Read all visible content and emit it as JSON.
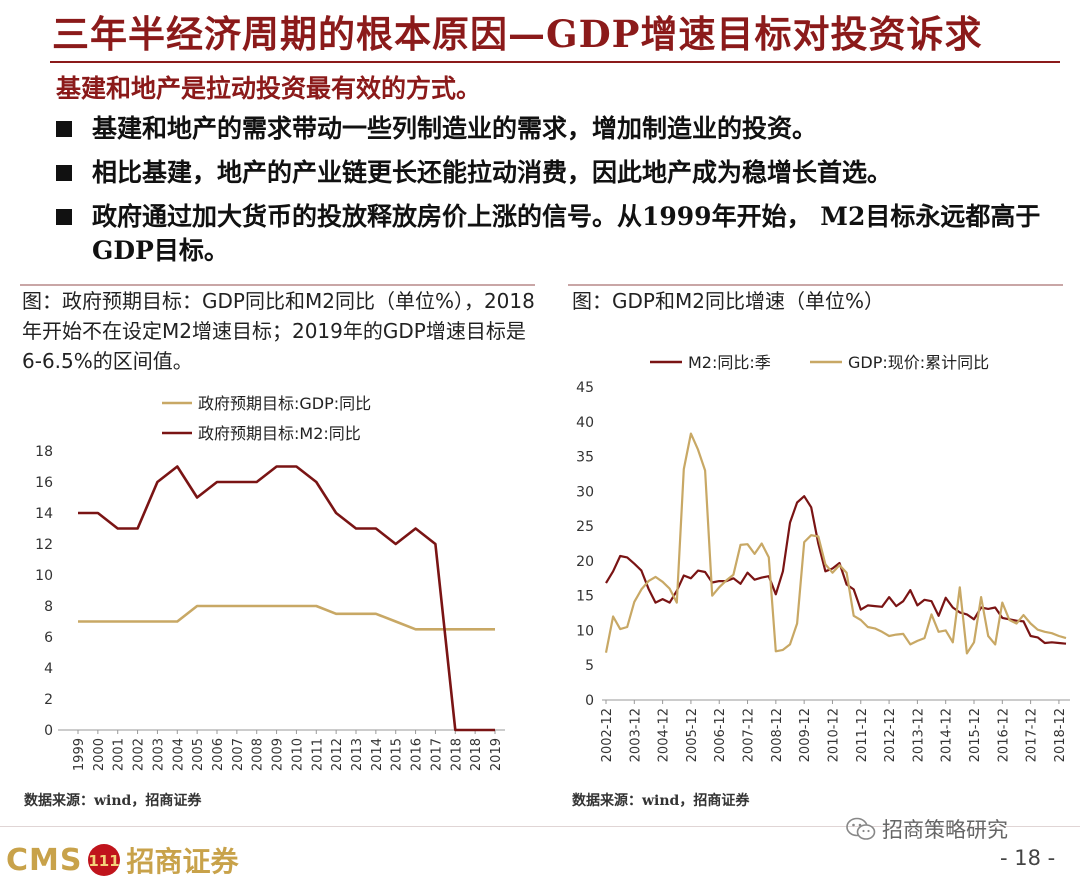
{
  "title": "三年半经济周期的根本原因—GDP增速目标对投资诉求",
  "subtitle": "基建和地产是拉动投资最有效的方式。",
  "bullets": [
    "基建和地产的需求带动一些列制造业的需求，增加制造业的投资。",
    "相比基建，地产的产业链更长还能拉动消费，因此地产成为稳增长首选。",
    "政府通过加大货币的投放释放房价上涨的信号。从1999年开始， M2目标永远都高于GDP目标。"
  ],
  "left_panel": {
    "caption": "图：政府预期目标：GDP同比和M2同比（单位%），2018年开始不在设定M2增速目标；2019年的GDP增速目标是6-6.5%的区间值。",
    "source": "数据来源：wind，招商证券"
  },
  "right_panel": {
    "caption": "图：GDP和M2同比增速（单位%）",
    "source": "数据来源：wind，招商证券"
  },
  "chart_data": [
    {
      "type": "line",
      "categories": [
        "1999",
        "2000",
        "2001",
        "2002",
        "2003",
        "2004",
        "2005",
        "2006",
        "2007",
        "2008",
        "2009",
        "2010",
        "2011",
        "2012",
        "2013",
        "2014",
        "2015",
        "2016",
        "2017",
        "2018",
        "2018",
        "2019"
      ],
      "series": [
        {
          "name": "政府预期目标:GDP:同比",
          "color": "#c8a865",
          "values": [
            7,
            7,
            7,
            7,
            7,
            7,
            8,
            8,
            8,
            8,
            8,
            8,
            8,
            7.5,
            7.5,
            7.5,
            7,
            6.5,
            6.5,
            6.5,
            6.5,
            6.5
          ]
        },
        {
          "name": "政府预期目标:M2:同比",
          "color": "#7a1414",
          "values": [
            14,
            14,
            13,
            13,
            16,
            17,
            15,
            16,
            16,
            16,
            17,
            17,
            16,
            14,
            13,
            13,
            12,
            13,
            12,
            0,
            0,
            0
          ]
        }
      ],
      "yticks": [
        0,
        2,
        4,
        6,
        8,
        10,
        12,
        14,
        16,
        18
      ],
      "ylim": [
        0,
        18
      ],
      "legend": "top-left",
      "grid": false
    },
    {
      "type": "line",
      "xticks": [
        "2002-12",
        "2003-12",
        "2004-12",
        "2005-12",
        "2006-12",
        "2007-12",
        "2008-12",
        "2009-12",
        "2010-12",
        "2011-12",
        "2012-12",
        "2013-12",
        "2014-12",
        "2015-12",
        "2016-12",
        "2017-12",
        "2018-12"
      ],
      "x_start": 2002.75,
      "x_step": 0.25,
      "series": [
        {
          "name": "M2:同比:季",
          "color": "#7a1414",
          "values": [
            16.8,
            18.5,
            20.7,
            20.5,
            19.6,
            18.6,
            16.0,
            14.0,
            14.5,
            14.0,
            15.7,
            17.9,
            17.5,
            18.6,
            18.4,
            16.9,
            17.1,
            17.1,
            17.5,
            16.7,
            18.3,
            17.3,
            17.6,
            17.8,
            15.2,
            18.5,
            25.5,
            28.4,
            29.3,
            27.7,
            22.5,
            18.5,
            18.9,
            19.7,
            16.6,
            15.9,
            13.0,
            13.6,
            13.5,
            13.4,
            14.8,
            13.5,
            14.2,
            15.8,
            13.6,
            14.4,
            14.2,
            12.1,
            14.7,
            13.3,
            12.6,
            12.3,
            11.6,
            13.3,
            13.1,
            13.3,
            11.8,
            11.6,
            11.4,
            11.3,
            9.2,
            9.0,
            8.2,
            8.3,
            8.2,
            8.1
          ]
        },
        {
          "name": "GDP:现价:累计同比",
          "color": "#c8a865",
          "values": [
            6.8,
            12.0,
            10.2,
            10.5,
            14.1,
            15.9,
            17.1,
            17.7,
            17.0,
            16.0,
            14.0,
            33.2,
            38.3,
            36.0,
            33.0,
            15.0,
            16.2,
            17.2,
            18.0,
            22.3,
            22.4,
            21.0,
            22.5,
            20.5,
            7.0,
            7.2,
            8.0,
            11.0,
            22.7,
            23.7,
            23.5,
            19.5,
            18.3,
            19.4,
            18.3,
            12.1,
            11.5,
            10.5,
            10.3,
            9.8,
            9.2,
            9.4,
            9.5,
            8.0,
            8.5,
            8.9,
            12.3,
            9.8,
            10.0,
            8.3,
            16.2,
            6.7,
            8.3,
            14.8,
            9.2,
            8.0,
            14.0,
            11.5,
            11.0,
            12.2,
            11.0,
            10.1,
            9.8,
            9.6,
            9.2,
            8.9
          ]
        }
      ],
      "yticks": [
        0,
        5,
        10,
        15,
        20,
        25,
        30,
        35,
        40,
        45
      ],
      "ylim": [
        0,
        45
      ],
      "legend": "top",
      "grid": false
    }
  ],
  "footer": {
    "logo_cms": "CMS",
    "logo_badge": "111",
    "logo_name": "招商证券",
    "wechat": "招商策略研究",
    "page": "- 18 -"
  }
}
